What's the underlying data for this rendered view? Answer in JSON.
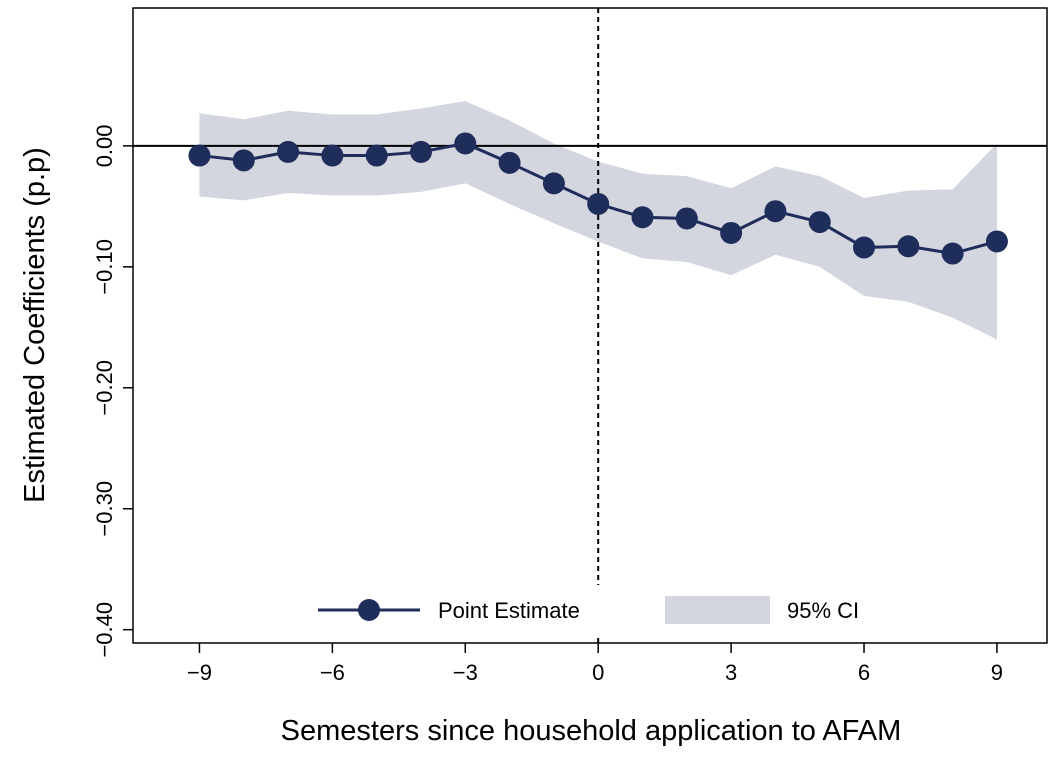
{
  "chart_data": {
    "type": "line",
    "xlabel": "Semesters since household application to AFAM",
    "ylabel": "Estimated Coefficients (p.p)",
    "x": [
      -9,
      -8,
      -7,
      -6,
      -5,
      -4,
      -3,
      -2,
      -1,
      0,
      1,
      2,
      3,
      4,
      5,
      6,
      7,
      8,
      9
    ],
    "series": [
      {
        "name": "Point Estimate",
        "color": "#1f2d5a",
        "values": [
          -0.008,
          -0.012,
          -0.005,
          -0.008,
          -0.008,
          -0.005,
          0.002,
          -0.014,
          -0.031,
          -0.048,
          -0.059,
          -0.06,
          -0.072,
          -0.054,
          -0.063,
          -0.084,
          -0.083,
          -0.089,
          -0.079
        ]
      }
    ],
    "ci": {
      "name": "95% CI",
      "color": "#d3d5df",
      "upper": [
        0.027,
        0.022,
        0.029,
        0.026,
        0.026,
        0.031,
        0.037,
        0.021,
        0.002,
        -0.013,
        -0.023,
        -0.025,
        -0.035,
        -0.017,
        -0.025,
        -0.043,
        -0.037,
        -0.036,
        0.002
      ],
      "lower": [
        -0.042,
        -0.045,
        -0.039,
        -0.041,
        -0.041,
        -0.038,
        -0.031,
        -0.048,
        -0.064,
        -0.079,
        -0.093,
        -0.096,
        -0.107,
        -0.09,
        -0.1,
        -0.124,
        -0.129,
        -0.142,
        -0.16
      ]
    },
    "xlim": [
      -10.5,
      10.13
    ],
    "ylim": [
      -0.411,
      0.114
    ],
    "xticks": [
      {
        "value": -9,
        "label": "−9"
      },
      {
        "value": -6,
        "label": "−6"
      },
      {
        "value": -3,
        "label": "−3"
      },
      0,
      3,
      6,
      9
    ],
    "yticks": [
      {
        "value": 0,
        "label": "0.00"
      },
      {
        "value": -0.1,
        "label": "−0.10"
      },
      {
        "value": -0.2,
        "label": "−0.20"
      },
      {
        "value": -0.3,
        "label": "−0.30"
      },
      {
        "value": -0.4,
        "label": "−0.40"
      }
    ],
    "hline": 0,
    "vline": 0,
    "legend": "bottom"
  }
}
